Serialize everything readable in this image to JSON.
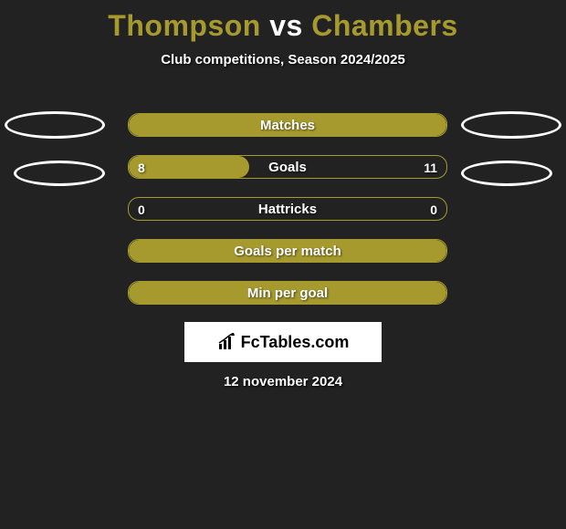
{
  "title": {
    "player1": "Thompson",
    "vs": "vs",
    "player2": "Chambers",
    "player1_color": "#a69a2f",
    "vs_color": "#ffffff",
    "player2_color": "#a69a2f"
  },
  "subtitle": "Club competitions, Season 2024/2025",
  "bars": [
    {
      "label": "Matches",
      "left_value": "",
      "right_value": "",
      "left_fill_pct": 100,
      "right_fill_pct": 0,
      "fill_color": "#a69a2f"
    },
    {
      "label": "Goals",
      "left_value": "8",
      "right_value": "11",
      "left_fill_pct": 38,
      "right_fill_pct": 0,
      "fill_color": "#a69a2f"
    },
    {
      "label": "Hattricks",
      "left_value": "0",
      "right_value": "0",
      "left_fill_pct": 0,
      "right_fill_pct": 0,
      "fill_color": "#a69a2f"
    },
    {
      "label": "Goals per match",
      "left_value": "",
      "right_value": "",
      "left_fill_pct": 100,
      "right_fill_pct": 0,
      "fill_color": "#a69a2f"
    },
    {
      "label": "Min per goal",
      "left_value": "",
      "right_value": "",
      "left_fill_pct": 100,
      "right_fill_pct": 0,
      "fill_color": "#a69a2f"
    }
  ],
  "brand": "FcTables.com",
  "date": "12 november 2024",
  "colors": {
    "background": "#222222",
    "accent": "#a69a2f",
    "ellipse_border": "#ffffff"
  }
}
